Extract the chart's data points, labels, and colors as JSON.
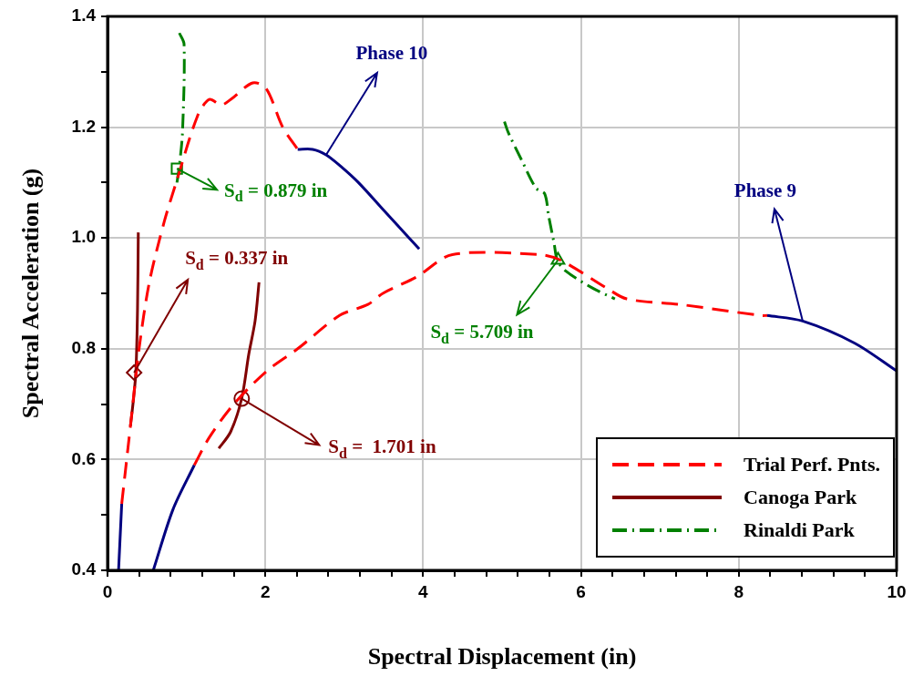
{
  "chart_data": {
    "type": "line",
    "xlabel": "Spectral Displacement (in)",
    "ylabel": "Spectral Acceleration (g)",
    "xlim": [
      0,
      10
    ],
    "ylim": [
      0.4,
      1.4
    ],
    "xticks": [
      0,
      {
        "value": 0.4,
        "label": null
      },
      {
        "value": 0.8,
        "label": null
      },
      {
        "value": 1.2,
        "label": null
      },
      {
        "value": 1.6,
        "label": null
      },
      2,
      {
        "value": 2.4,
        "label": null
      },
      {
        "value": 2.8,
        "label": null
      },
      {
        "value": 3.2,
        "label": null
      },
      {
        "value": 3.6,
        "label": null
      },
      4,
      {
        "value": 4.4,
        "label": null
      },
      {
        "value": 4.8,
        "label": null
      },
      {
        "value": 5.2,
        "label": null
      },
      {
        "value": 5.6,
        "label": null
      },
      6,
      {
        "value": 6.4,
        "label": null
      },
      {
        "value": 6.8,
        "label": null
      },
      {
        "value": 7.2,
        "label": null
      },
      {
        "value": 7.6,
        "label": null
      },
      8,
      {
        "value": 8.4,
        "label": null
      },
      {
        "value": 8.8,
        "label": null
      },
      {
        "value": 9.2,
        "label": null
      },
      {
        "value": 9.6,
        "label": null
      },
      10
    ],
    "yticks": [
      0.4,
      {
        "value": 0.5,
        "label": null
      },
      0.6,
      {
        "value": 0.7,
        "label": null
      },
      0.8,
      {
        "value": 0.9,
        "label": null
      },
      {
        "value": 1,
        "label": "1.0"
      },
      {
        "value": 1.1,
        "label": null
      },
      1.2,
      {
        "value": 1.3,
        "label": null
      },
      1.4
    ],
    "grid": true,
    "legend": "bottom right",
    "series": [
      {
        "name": "Trial Perf. Pnts.",
        "line_style": "dashed",
        "color": "#ff0000",
        "x": [
          0.18,
          0.29,
          0.4,
          0.53,
          0.72,
          0.87,
          1.14,
          1.29,
          1.44,
          1.56,
          1.84,
          2.01,
          2.22,
          2.41
        ],
        "values": [
          0.52,
          0.66,
          0.8,
          0.92,
          1.03,
          1.1,
          1.22,
          1.25,
          1.24,
          1.25,
          1.28,
          1.27,
          1.2,
          1.16
        ]
      },
      {
        "line_style": "dashed",
        "color": "#ff0000",
        "x": [
          1.1,
          1.29,
          1.6,
          2.02,
          2.41,
          2.94,
          3.3,
          3.49,
          3.92,
          4.37,
          5.47,
          5.74,
          6.32,
          6.58,
          7.25,
          8.28,
          8.36
        ],
        "values": [
          0.59,
          0.64,
          0.7,
          0.76,
          0.8,
          0.86,
          0.88,
          0.9,
          0.93,
          0.97,
          0.97,
          0.96,
          0.91,
          0.89,
          0.88,
          0.86,
          0.86
        ]
      },
      {
        "line_style": "solid",
        "color": "#000080",
        "x": [
          0.14,
          0.18
        ],
        "values": [
          0.4,
          0.52
        ]
      },
      {
        "line_style": "solid",
        "color": "#000080",
        "x": [
          2.41,
          2.6,
          2.77,
          2.95,
          3.18,
          3.5,
          3.95
        ],
        "values": [
          1.16,
          1.16,
          1.15,
          1.13,
          1.1,
          1.05,
          0.98
        ]
      },
      {
        "line_style": "solid",
        "color": "#000080",
        "x": [
          0.58,
          0.83,
          1.1
        ],
        "values": [
          0.4,
          0.51,
          0.59
        ]
      },
      {
        "line_style": "solid",
        "color": "#000080",
        "x": [
          8.36,
          8.81,
          9.47,
          10.0
        ],
        "values": [
          0.86,
          0.85,
          0.81,
          0.76
        ]
      },
      {
        "name": "Canoga Park",
        "line_style": "solid",
        "color": "#800000",
        "x": [
          0.29,
          0.33,
          0.36,
          0.38,
          0.39
        ],
        "values": [
          0.66,
          0.71,
          0.76,
          0.87,
          1.01
        ]
      },
      {
        "line_style": "solid",
        "color": "#800000",
        "x": [
          1.41,
          1.56,
          1.7,
          1.79,
          1.87,
          1.92
        ],
        "values": [
          0.62,
          0.65,
          0.71,
          0.79,
          0.85,
          0.92
        ]
      },
      {
        "name": "Rinaldi Park",
        "line_style": "dashdot",
        "color": "#008000",
        "x": [
          0.88,
          0.91,
          0.95,
          0.97,
          0.91
        ],
        "values": [
          1.1,
          1.13,
          1.19,
          1.35,
          1.37
        ]
      },
      {
        "line_style": "dashdot",
        "color": "#008000",
        "x": [
          5.03,
          5.08,
          5.25,
          5.43,
          5.54,
          5.59,
          5.66,
          5.7,
          5.81,
          6.14,
          6.43
        ],
        "values": [
          1.21,
          1.19,
          1.14,
          1.09,
          1.08,
          1.04,
          0.99,
          0.96,
          0.94,
          0.91,
          0.89
        ]
      },
      {
        "type": "scatter",
        "marker": "square",
        "color": "#008000",
        "x": [
          0.879
        ],
        "values": [
          1.125
        ]
      },
      {
        "type": "scatter",
        "marker": "diamond",
        "color": "#800000",
        "x": [
          0.337
        ],
        "values": [
          0.757
        ]
      },
      {
        "type": "scatter",
        "marker": "circle",
        "color": "#800000",
        "x": [
          1.701
        ],
        "values": [
          0.71
        ]
      },
      {
        "type": "scatter",
        "marker": "triangle",
        "color": "#008000",
        "x": [
          5.709
        ],
        "values": [
          0.96
        ]
      }
    ],
    "annotations": [
      {
        "text": "Phase 10",
        "x": 2.77,
        "y": 1.15
      },
      {
        "text": "Phase 9",
        "x": 8.81,
        "y": 0.85
      },
      {
        "text": "S$_{d}$ = 0.879 in",
        "x": 0.879,
        "y": 1.125
      },
      {
        "text": "S$_{d}$ = 0.337 in",
        "x": 0.337,
        "y": 0.757
      },
      {
        "text": "S$_{d}$ =  1.701 in",
        "x": 1.701,
        "y": 0.71
      },
      {
        "text": "S$_{d}$ = 5.709 in",
        "x": 5.709,
        "y": 0.96
      }
    ]
  }
}
